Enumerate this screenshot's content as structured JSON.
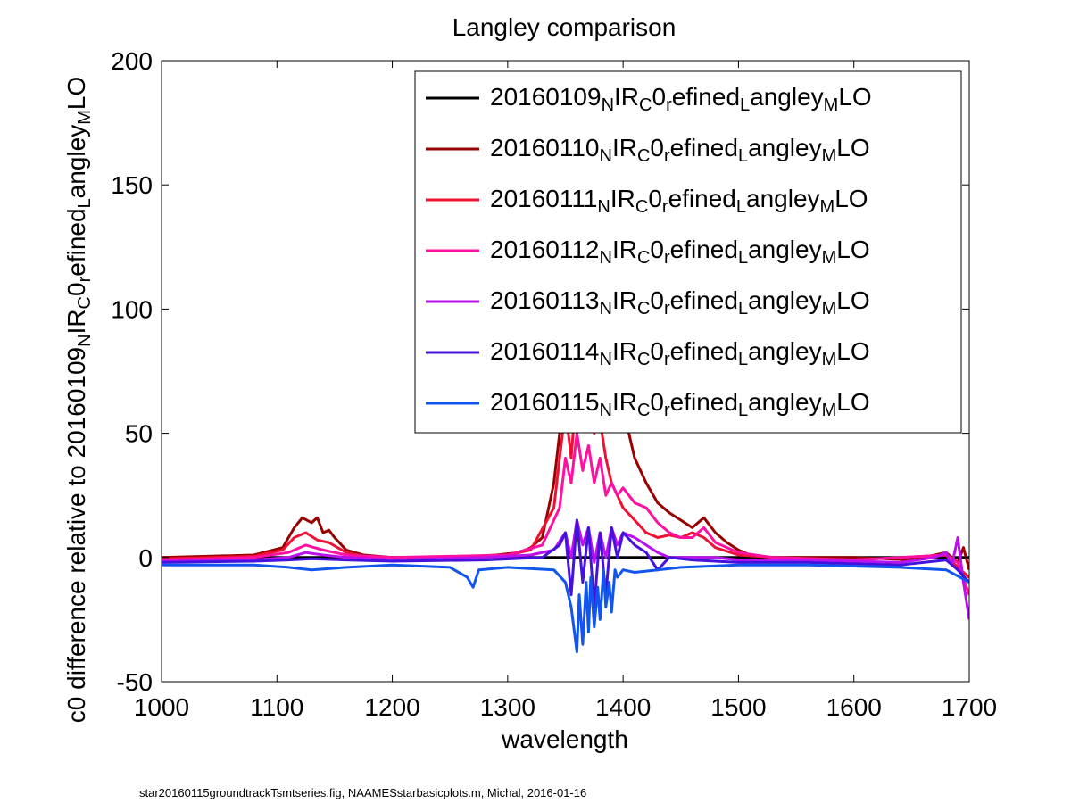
{
  "chart_data": {
    "type": "line",
    "title": "Langley comparison",
    "xlabel": "wavelength",
    "ylabel_parts": [
      {
        "t": "c0 difference relative to 20160109"
      },
      {
        "t": "N",
        "sub": true
      },
      {
        "t": "IR"
      },
      {
        "t": "C",
        "sub": true
      },
      {
        "t": "0"
      },
      {
        "t": "r",
        "sub": true
      },
      {
        "t": "efined"
      },
      {
        "t": "L",
        "sub": true
      },
      {
        "t": "angley"
      },
      {
        "t": "M",
        "sub": true
      },
      {
        "t": "LO"
      }
    ],
    "xlim": [
      1000,
      1700
    ],
    "ylim": [
      -50,
      200
    ],
    "xticks": [
      "1000",
      "1100",
      "1200",
      "1300",
      "1400",
      "1500",
      "1600",
      "1700"
    ],
    "yticks": [
      "-50",
      "0",
      "50",
      "100",
      "150",
      "200"
    ],
    "legend_placement": "top-right",
    "grid": false,
    "series": [
      {
        "date": "20160109",
        "color": "#000000",
        "x": [
          1000,
          1700
        ],
        "y": [
          0,
          0
        ]
      },
      {
        "date": "20160110",
        "color": "#990000",
        "x": [
          1000,
          1080,
          1105,
          1115,
          1122,
          1130,
          1135,
          1140,
          1145,
          1150,
          1160,
          1175,
          1200,
          1250,
          1290,
          1310,
          1320,
          1330,
          1340,
          1345,
          1350,
          1355,
          1360,
          1365,
          1370,
          1375,
          1380,
          1385,
          1390,
          1395,
          1400,
          1405,
          1410,
          1420,
          1430,
          1440,
          1450,
          1460,
          1470,
          1480,
          1490,
          1500,
          1510,
          1530,
          1560,
          1600,
          1650,
          1680,
          1690,
          1695,
          1700
        ],
        "y": [
          0,
          1,
          4,
          12,
          16,
          14,
          16,
          10,
          11,
          8,
          3,
          1,
          0,
          0,
          1,
          2,
          4,
          8,
          30,
          50,
          90,
          80,
          110,
          95,
          100,
          85,
          90,
          70,
          75,
          60,
          65,
          50,
          40,
          30,
          22,
          18,
          15,
          12,
          16,
          10,
          6,
          3,
          1,
          0,
          0,
          0,
          -1,
          2,
          -2,
          4,
          -5
        ]
      },
      {
        "date": "20160111",
        "color": "#ee1133",
        "x": [
          1000,
          1080,
          1105,
          1115,
          1125,
          1135,
          1145,
          1160,
          1180,
          1250,
          1300,
          1320,
          1340,
          1350,
          1355,
          1360,
          1365,
          1370,
          1375,
          1380,
          1385,
          1390,
          1400,
          1410,
          1420,
          1430,
          1440,
          1450,
          1460,
          1470,
          1480,
          1500,
          1530,
          1600,
          1680,
          1690,
          1700
        ],
        "y": [
          -0.5,
          0.5,
          3,
          8,
          10,
          7,
          6,
          2,
          0,
          0,
          1,
          3,
          20,
          60,
          40,
          70,
          55,
          65,
          50,
          55,
          40,
          30,
          20,
          15,
          10,
          8,
          9,
          8,
          10,
          8,
          4,
          1,
          0,
          -1,
          1,
          -4,
          -8
        ]
      },
      {
        "date": "20160112",
        "color": "#ff10a0",
        "x": [
          1000,
          1080,
          1110,
          1125,
          1140,
          1160,
          1200,
          1300,
          1330,
          1345,
          1350,
          1355,
          1360,
          1365,
          1370,
          1375,
          1380,
          1385,
          1390,
          1395,
          1400,
          1410,
          1420,
          1430,
          1440,
          1450,
          1460,
          1470,
          1480,
          1500,
          1530,
          1600,
          1680,
          1690,
          1700
        ],
        "y": [
          -1,
          0,
          2,
          5,
          3,
          1,
          0,
          1,
          5,
          20,
          40,
          30,
          50,
          35,
          45,
          30,
          40,
          25,
          30,
          25,
          28,
          22,
          20,
          14,
          10,
          8,
          8,
          12,
          6,
          2,
          0,
          -1,
          1,
          -2,
          -15
        ]
      },
      {
        "date": "20160113",
        "color": "#bb11ee",
        "x": [
          1000,
          1080,
          1110,
          1125,
          1140,
          1160,
          1200,
          1280,
          1320,
          1340,
          1350,
          1355,
          1360,
          1365,
          1370,
          1375,
          1380,
          1385,
          1390,
          1395,
          1400,
          1410,
          1420,
          1430,
          1440,
          1460,
          1480,
          1500,
          1560,
          1640,
          1670,
          1680,
          1685,
          1690,
          1695,
          1700
        ],
        "y": [
          -1.5,
          -1,
          0,
          2,
          1,
          0,
          -1,
          0,
          1,
          3,
          10,
          0,
          15,
          5,
          12,
          -2,
          10,
          0,
          12,
          5,
          10,
          8,
          5,
          2,
          0,
          0,
          0,
          -1,
          -1,
          -2,
          0,
          2,
          -3,
          8,
          -10,
          -25
        ]
      },
      {
        "date": "20160114",
        "color": "#4411dd",
        "x": [
          1000,
          1080,
          1110,
          1130,
          1160,
          1200,
          1280,
          1330,
          1345,
          1350,
          1355,
          1360,
          1365,
          1370,
          1375,
          1380,
          1385,
          1390,
          1395,
          1400,
          1410,
          1420,
          1430,
          1440,
          1460,
          1500,
          1560,
          1640,
          1680,
          1690,
          1700
        ],
        "y": [
          -2,
          -1.5,
          -1,
          -0.5,
          -1,
          -1.5,
          -1,
          0,
          5,
          10,
          -15,
          15,
          -10,
          12,
          -20,
          10,
          -15,
          12,
          0,
          10,
          5,
          2,
          -5,
          0,
          -1,
          -2,
          -2,
          -3,
          -1,
          -5,
          -10
        ]
      },
      {
        "date": "20160115",
        "color": "#1155ee",
        "x": [
          1000,
          1080,
          1110,
          1130,
          1160,
          1200,
          1250,
          1265,
          1270,
          1275,
          1300,
          1340,
          1350,
          1355,
          1360,
          1362,
          1365,
          1368,
          1370,
          1372,
          1375,
          1378,
          1380,
          1383,
          1385,
          1388,
          1390,
          1393,
          1395,
          1400,
          1410,
          1430,
          1450,
          1500,
          1560,
          1640,
          1680,
          1700
        ],
        "y": [
          -3,
          -3,
          -4,
          -5,
          -4,
          -3,
          -4,
          -8,
          -12,
          -5,
          -4,
          -5,
          -10,
          -20,
          -38,
          -15,
          -35,
          -10,
          -30,
          -8,
          -28,
          -12,
          -25,
          -5,
          -20,
          -10,
          -22,
          -5,
          -8,
          -5,
          -6,
          -5,
          -4,
          -3,
          -3,
          -4,
          -5,
          -10
        ]
      }
    ]
  },
  "legend": {
    "prefix_suffix_parts": [
      {
        "t": "N",
        "sub": true
      },
      {
        "t": "IR"
      },
      {
        "t": "C",
        "sub": true
      },
      {
        "t": "0"
      },
      {
        "t": "r",
        "sub": true
      },
      {
        "t": "efined"
      },
      {
        "t": "L",
        "sub": true
      },
      {
        "t": "angley"
      },
      {
        "t": "M",
        "sub": true
      },
      {
        "t": "LO"
      }
    ]
  },
  "footnote": "star20160115groundtrackTsmtseries.fig, NAAMESstarbasicplots.m, Michal, 2016-01-16"
}
